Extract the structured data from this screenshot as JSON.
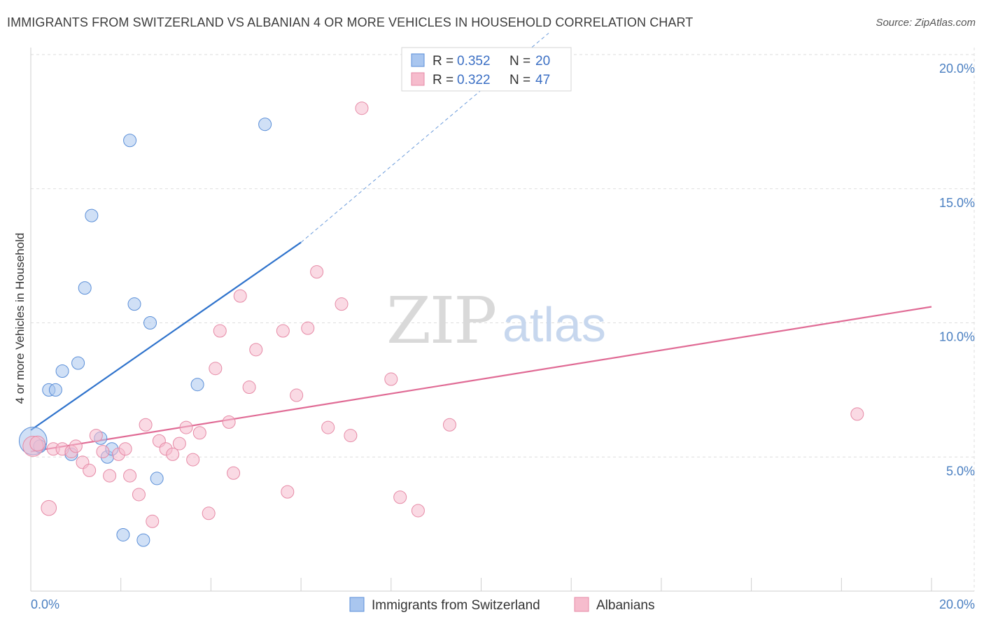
{
  "title": "IMMIGRANTS FROM SWITZERLAND VS ALBANIAN 4 OR MORE VEHICLES IN HOUSEHOLD CORRELATION CHART",
  "source": "Source: ZipAtlas.com",
  "watermark": {
    "zip": "ZIP",
    "atlas": "atlas"
  },
  "colors": {
    "blue_fill": "#a9c6ef",
    "blue_stroke": "#5b8fd8",
    "blue_line": "#2f73cc",
    "pink_fill": "#f6bccd",
    "pink_stroke": "#e68aa6",
    "pink_line": "#e06b95",
    "grid": "#dddddd",
    "tick_text": "#4a7fc1"
  },
  "chart_data": {
    "type": "scatter",
    "title": "IMMIGRANTS FROM SWITZERLAND VS ALBANIAN 4 OR MORE VEHICLES IN HOUSEHOLD CORRELATION CHART",
    "xlabel": "",
    "ylabel": "4 or more Vehicles in Household",
    "xlim": [
      0,
      20
    ],
    "ylim": [
      0,
      20.5
    ],
    "x_ticks": [
      {
        "value": 0,
        "label": "0.0%"
      },
      {
        "value": 20,
        "label": "20.0%"
      }
    ],
    "y_ticks": [
      {
        "value": 5,
        "label": "5.0%"
      },
      {
        "value": 10,
        "label": "10.0%"
      },
      {
        "value": 15,
        "label": "15.0%"
      },
      {
        "value": 20,
        "label": "20.0%"
      }
    ],
    "legend": [
      {
        "r_label": "R =",
        "r_value": "0.352",
        "n_label": "N =",
        "n_value": "20"
      },
      {
        "r_label": "R =",
        "r_value": "0.322",
        "n_label": "N =",
        "n_value": "47"
      }
    ],
    "series": [
      {
        "name": "Immigrants from Switzerland",
        "color": "blue",
        "points": [
          [
            0.05,
            5.6,
            22
          ],
          [
            0.2,
            5.4,
            10
          ],
          [
            0.4,
            7.5,
            10
          ],
          [
            0.55,
            7.5,
            10
          ],
          [
            0.7,
            8.2,
            10
          ],
          [
            0.9,
            5.1,
            10
          ],
          [
            1.05,
            8.5,
            10
          ],
          [
            1.2,
            11.3,
            10
          ],
          [
            1.35,
            14.0,
            10
          ],
          [
            1.55,
            5.7,
            10
          ],
          [
            1.7,
            5.0,
            10
          ],
          [
            1.8,
            5.3,
            10
          ],
          [
            2.05,
            2.1,
            10
          ],
          [
            2.2,
            16.8,
            10
          ],
          [
            2.3,
            10.7,
            10
          ],
          [
            2.5,
            1.9,
            10
          ],
          [
            2.65,
            10.0,
            10
          ],
          [
            2.8,
            4.2,
            10
          ],
          [
            3.7,
            7.7,
            10
          ],
          [
            5.2,
            17.4,
            10
          ]
        ],
        "trend": {
          "x0": 0,
          "y0": 6.0,
          "x1": 6.0,
          "y1": 13.0,
          "dash_to_x": 11.5,
          "dash_to_y": 20.8
        }
      },
      {
        "name": "Albanians",
        "color": "pink",
        "points": [
          [
            0.05,
            5.4,
            16
          ],
          [
            0.4,
            3.1,
            12
          ],
          [
            0.5,
            5.3,
            10
          ],
          [
            0.7,
            5.3,
            10
          ],
          [
            0.9,
            5.2,
            10
          ],
          [
            1.0,
            5.4,
            10
          ],
          [
            1.15,
            4.8,
            10
          ],
          [
            1.3,
            4.5,
            10
          ],
          [
            1.45,
            5.8,
            10
          ],
          [
            1.6,
            5.2,
            10
          ],
          [
            1.75,
            4.3,
            10
          ],
          [
            1.95,
            5.1,
            10
          ],
          [
            2.1,
            5.3,
            10
          ],
          [
            2.2,
            4.3,
            10
          ],
          [
            2.4,
            3.6,
            10
          ],
          [
            2.55,
            6.2,
            10
          ],
          [
            2.7,
            2.6,
            10
          ],
          [
            2.85,
            5.6,
            10
          ],
          [
            3.0,
            5.3,
            10
          ],
          [
            3.15,
            5.1,
            10
          ],
          [
            3.3,
            5.5,
            10
          ],
          [
            3.45,
            6.1,
            10
          ],
          [
            3.6,
            4.9,
            10
          ],
          [
            3.75,
            5.9,
            10
          ],
          [
            3.95,
            2.9,
            10
          ],
          [
            4.1,
            8.3,
            10
          ],
          [
            4.2,
            9.7,
            10
          ],
          [
            4.4,
            6.3,
            10
          ],
          [
            4.5,
            4.4,
            10
          ],
          [
            4.65,
            11.0,
            10
          ],
          [
            4.85,
            7.6,
            10
          ],
          [
            5.0,
            9.0,
            10
          ],
          [
            5.6,
            9.7,
            10
          ],
          [
            5.7,
            3.7,
            10
          ],
          [
            5.9,
            7.3,
            10
          ],
          [
            6.15,
            9.8,
            10
          ],
          [
            6.35,
            11.9,
            10
          ],
          [
            6.6,
            6.1,
            10
          ],
          [
            6.9,
            10.7,
            10
          ],
          [
            7.1,
            5.8,
            10
          ],
          [
            7.35,
            18.0,
            10
          ],
          [
            8.0,
            7.9,
            10
          ],
          [
            8.2,
            3.5,
            10
          ],
          [
            8.6,
            3.0,
            10
          ],
          [
            9.3,
            6.2,
            10
          ],
          [
            18.35,
            6.6,
            10
          ],
          [
            0.15,
            5.5,
            12
          ]
        ],
        "trend": {
          "x0": 0,
          "y0": 5.2,
          "x1": 20,
          "y1": 10.6
        }
      }
    ]
  },
  "bottom_legend": [
    {
      "label": "Immigrants from Switzerland",
      "color": "blue"
    },
    {
      "label": "Albanians",
      "color": "pink"
    }
  ]
}
